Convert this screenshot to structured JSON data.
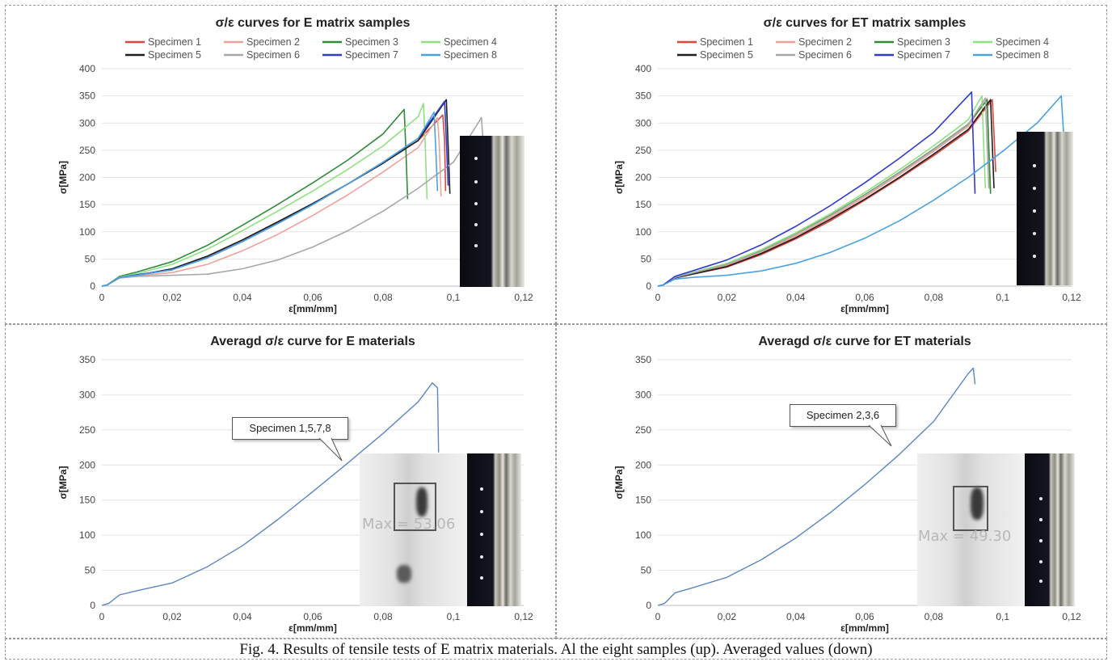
{
  "caption": "Fig. 4. Results of tensile tests of E matrix materials. Al the eight samples (up). Averaged values (down)",
  "charts": [
    {
      "type": "line",
      "title": "σ/ε curves for E matrix samples",
      "xlabel": "ε[mm/mm]",
      "ylabel": "σ[MPa]",
      "xlim": [
        0,
        0.12
      ],
      "ylim": [
        0,
        400
      ],
      "xticks": [
        "0",
        "0,02",
        "0,04",
        "0,06",
        "0,08",
        "0,1",
        "0,12"
      ],
      "yticks": [
        "0",
        "50",
        "100",
        "150",
        "200",
        "250",
        "300",
        "350",
        "400"
      ],
      "legend": "top",
      "series": [
        {
          "name": "Specimen 1",
          "color": "#e0453a",
          "x": [
            0,
            0.0015,
            0.005,
            0.01,
            0.02,
            0.03,
            0.04,
            0.05,
            0.06,
            0.07,
            0.08,
            0.09,
            0.097,
            0.0975,
            0.0978
          ],
          "y": [
            0,
            2,
            16,
            21,
            30,
            55,
            85,
            118,
            152,
            188,
            228,
            268,
            315,
            270,
            175
          ]
        },
        {
          "name": "Specimen 2",
          "color": "#f0a29a",
          "x": [
            0,
            0.0015,
            0.005,
            0.01,
            0.02,
            0.03,
            0.04,
            0.05,
            0.06,
            0.07,
            0.08,
            0.09,
            0.0955,
            0.096,
            0.0965
          ],
          "y": [
            0,
            2,
            15,
            19,
            25,
            40,
            65,
            95,
            130,
            168,
            210,
            255,
            310,
            260,
            165
          ]
        },
        {
          "name": "Specimen 3",
          "color": "#2f8a3a",
          "x": [
            0,
            0.0015,
            0.005,
            0.01,
            0.02,
            0.03,
            0.04,
            0.05,
            0.06,
            0.07,
            0.08,
            0.086,
            0.0865,
            0.087
          ],
          "y": [
            0,
            2,
            18,
            26,
            45,
            75,
            112,
            150,
            190,
            232,
            280,
            325,
            250,
            160
          ]
        },
        {
          "name": "Specimen 4",
          "color": "#8ee27f",
          "x": [
            0,
            0.0015,
            0.005,
            0.01,
            0.02,
            0.03,
            0.04,
            0.05,
            0.06,
            0.07,
            0.08,
            0.09,
            0.0915,
            0.092,
            0.0925
          ],
          "y": [
            0,
            2,
            17,
            23,
            40,
            68,
            102,
            138,
            175,
            215,
            258,
            312,
            336,
            260,
            160
          ]
        },
        {
          "name": "Specimen 5",
          "color": "#1e1e1e",
          "x": [
            0,
            0.0015,
            0.005,
            0.01,
            0.02,
            0.03,
            0.04,
            0.05,
            0.06,
            0.07,
            0.08,
            0.09,
            0.098,
            0.0985,
            0.099
          ],
          "y": [
            0,
            2,
            16,
            20,
            32,
            55,
            85,
            118,
            152,
            188,
            226,
            268,
            343,
            260,
            170
          ]
        },
        {
          "name": "Specimen 6",
          "color": "#a8a8a8",
          "x": [
            0,
            0.0015,
            0.005,
            0.01,
            0.02,
            0.03,
            0.04,
            0.05,
            0.06,
            0.07,
            0.08,
            0.09,
            0.1,
            0.108,
            0.1085,
            0.109
          ],
          "y": [
            0,
            2,
            15,
            18,
            20,
            22,
            32,
            48,
            72,
            102,
            138,
            180,
            228,
            310,
            260,
            200
          ]
        },
        {
          "name": "Specimen 7",
          "color": "#2f3ad0",
          "x": [
            0,
            0.0015,
            0.005,
            0.01,
            0.02,
            0.03,
            0.04,
            0.05,
            0.06,
            0.07,
            0.08,
            0.09,
            0.0975,
            0.098,
            0.0985
          ],
          "y": [
            0,
            2,
            16,
            21,
            30,
            52,
            82,
            115,
            150,
            188,
            228,
            272,
            340,
            270,
            185
          ]
        },
        {
          "name": "Specimen 8",
          "color": "#4aa3e0",
          "x": [
            0,
            0.0015,
            0.005,
            0.01,
            0.02,
            0.03,
            0.04,
            0.05,
            0.06,
            0.07,
            0.08,
            0.09,
            0.0945,
            0.095,
            0.0955
          ],
          "y": [
            0,
            2,
            16,
            20,
            30,
            52,
            82,
            115,
            150,
            188,
            228,
            272,
            320,
            250,
            175
          ]
        }
      ]
    },
    {
      "type": "line",
      "title": "σ/ε curves for ET matrix samples",
      "xlabel": "ε[mm/mm]",
      "ylabel": "σ[MPa]",
      "xlim": [
        0,
        0.12
      ],
      "ylim": [
        0,
        400
      ],
      "xticks": [
        "0",
        "0,02",
        "0,04",
        "0,06",
        "0,08",
        "0,1",
        "0,12"
      ],
      "yticks": [
        "0",
        "50",
        "100",
        "150",
        "200",
        "250",
        "300",
        "350",
        "400"
      ],
      "legend": "top",
      "series": [
        {
          "name": "Specimen 1",
          "color": "#e0453a",
          "x": [
            0,
            0.0015,
            0.005,
            0.01,
            0.02,
            0.03,
            0.04,
            0.05,
            0.06,
            0.07,
            0.08,
            0.09,
            0.097,
            0.0975,
            0.098
          ],
          "y": [
            0,
            2,
            15,
            22,
            35,
            58,
            87,
            120,
            158,
            198,
            240,
            285,
            343,
            280,
            210
          ]
        },
        {
          "name": "Specimen 2",
          "color": "#f0a29a",
          "x": [
            0,
            0.0015,
            0.005,
            0.01,
            0.02,
            0.03,
            0.04,
            0.05,
            0.06,
            0.07,
            0.08,
            0.09,
            0.0955,
            0.096,
            0.0965
          ],
          "y": [
            0,
            2,
            15,
            23,
            38,
            62,
            92,
            126,
            164,
            205,
            248,
            294,
            345,
            260,
            175
          ]
        },
        {
          "name": "Specimen 3",
          "color": "#2f8a3a",
          "x": [
            0,
            0.0015,
            0.005,
            0.01,
            0.02,
            0.03,
            0.04,
            0.05,
            0.06,
            0.07,
            0.08,
            0.09,
            0.0955,
            0.096,
            0.0965
          ],
          "y": [
            0,
            2,
            16,
            24,
            40,
            65,
            96,
            130,
            168,
            209,
            252,
            298,
            343,
            250,
            170
          ]
        },
        {
          "name": "Specimen 4",
          "color": "#8ee27f",
          "x": [
            0,
            0.0015,
            0.005,
            0.01,
            0.02,
            0.03,
            0.04,
            0.05,
            0.06,
            0.07,
            0.08,
            0.09,
            0.094,
            0.0945,
            0.095
          ],
          "y": [
            0,
            2,
            16,
            25,
            42,
            67,
            98,
            133,
            172,
            214,
            258,
            306,
            350,
            260,
            180
          ]
        },
        {
          "name": "Specimen 5",
          "color": "#1e1e1e",
          "x": [
            0,
            0.0015,
            0.005,
            0.01,
            0.02,
            0.03,
            0.04,
            0.05,
            0.06,
            0.07,
            0.08,
            0.09,
            0.0965,
            0.097,
            0.0975
          ],
          "y": [
            0,
            2,
            15,
            22,
            36,
            60,
            89,
            123,
            160,
            200,
            243,
            288,
            343,
            260,
            180
          ]
        },
        {
          "name": "Specimen 6",
          "color": "#a8a8a8",
          "x": [
            0,
            0.0015,
            0.005,
            0.01,
            0.02,
            0.03,
            0.04,
            0.05,
            0.06,
            0.07,
            0.08,
            0.09,
            0.095,
            0.0955,
            0.096
          ],
          "y": [
            0,
            2,
            16,
            24,
            40,
            64,
            95,
            129,
            167,
            208,
            251,
            297,
            346,
            260,
            180
          ]
        },
        {
          "name": "Specimen 7",
          "color": "#2f3ad0",
          "x": [
            0,
            0.0015,
            0.005,
            0.01,
            0.02,
            0.03,
            0.04,
            0.05,
            0.06,
            0.07,
            0.08,
            0.091,
            0.0915,
            0.092
          ],
          "y": [
            0,
            2,
            18,
            28,
            48,
            76,
            110,
            148,
            190,
            235,
            283,
            357,
            260,
            170
          ]
        },
        {
          "name": "Specimen 8",
          "color": "#4aa3e0",
          "x": [
            0,
            0.0015,
            0.005,
            0.01,
            0.02,
            0.03,
            0.04,
            0.05,
            0.06,
            0.07,
            0.08,
            0.09,
            0.1,
            0.11,
            0.117,
            0.1175,
            0.118
          ],
          "y": [
            0,
            2,
            13,
            16,
            20,
            28,
            42,
            62,
            88,
            120,
            158,
            200,
            248,
            300,
            350,
            300,
            250
          ]
        }
      ]
    },
    {
      "type": "line",
      "title": "Averagd σ/ε curve for E materials",
      "xlabel": "ε[mm/mm]",
      "ylabel": "σ[MPa]",
      "xlim": [
        0,
        0.12
      ],
      "ylim": [
        0,
        350
      ],
      "xticks": [
        "0",
        "0,02",
        "0,04",
        "0,06",
        "0,08",
        "0,1",
        "0,12"
      ],
      "yticks": [
        "0",
        "50",
        "100",
        "150",
        "200",
        "250",
        "300",
        "350"
      ],
      "annotation": "Specimen 1,5,7,8",
      "inset_label": "Max = 53.06",
      "series": [
        {
          "name": "",
          "color": "#5b86c4",
          "x": [
            0,
            0.002,
            0.005,
            0.01,
            0.02,
            0.03,
            0.04,
            0.05,
            0.06,
            0.07,
            0.08,
            0.09,
            0.094,
            0.0955,
            0.0958
          ],
          "y": [
            0,
            3,
            15,
            21,
            32,
            55,
            85,
            122,
            162,
            203,
            245,
            290,
            317,
            310,
            218
          ]
        }
      ]
    },
    {
      "type": "line",
      "title": "Averagd σ/ε curve for ET materials",
      "xlabel": "ε[mm/mm]",
      "ylabel": "σ[MPa]",
      "xlim": [
        0,
        0.12
      ],
      "ylim": [
        0,
        350
      ],
      "xticks": [
        "0",
        "0,02",
        "0,04",
        "0,06",
        "0,08",
        "0,1",
        "0,12"
      ],
      "yticks": [
        "0",
        "50",
        "100",
        "150",
        "200",
        "250",
        "300",
        "350"
      ],
      "annotation": "Specimen 2,3,6",
      "inset_label": "Max = 49.30",
      "series": [
        {
          "name": "",
          "color": "#5b86c4",
          "x": [
            0,
            0.002,
            0.005,
            0.01,
            0.02,
            0.03,
            0.04,
            0.05,
            0.06,
            0.07,
            0.08,
            0.09,
            0.0915,
            0.092
          ],
          "y": [
            0,
            3,
            18,
            25,
            40,
            65,
            96,
            132,
            172,
            215,
            262,
            330,
            338,
            315
          ]
        }
      ]
    }
  ]
}
